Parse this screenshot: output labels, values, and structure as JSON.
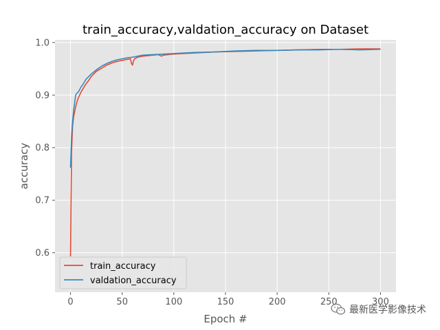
{
  "chart_data": {
    "type": "line",
    "title": "train_accuracy,valdation_accuracy on Dataset",
    "xlabel": "Epoch #",
    "ylabel": "accuracy",
    "xlim": [
      -15,
      315
    ],
    "ylim": [
      0.525,
      1.005
    ],
    "xticks": [
      0,
      50,
      100,
      150,
      200,
      250,
      300
    ],
    "yticks": [
      0.6,
      0.7,
      0.8,
      0.9,
      1.0
    ],
    "ytick_labels": [
      "0.6",
      "0.7",
      "0.8",
      "0.9",
      "1.0"
    ],
    "grid": true,
    "legend_position": "bottom-left",
    "series": [
      {
        "name": "train_accuracy",
        "color": "#E24A33",
        "points": [
          [
            0,
            0.593
          ],
          [
            1,
            0.79
          ],
          [
            2,
            0.84
          ],
          [
            3,
            0.858
          ],
          [
            5,
            0.878
          ],
          [
            7,
            0.892
          ],
          [
            10,
            0.905
          ],
          [
            13,
            0.915
          ],
          [
            15,
            0.921
          ],
          [
            18,
            0.929
          ],
          [
            20,
            0.935
          ],
          [
            25,
            0.945
          ],
          [
            30,
            0.951
          ],
          [
            35,
            0.957
          ],
          [
            40,
            0.961
          ],
          [
            45,
            0.964
          ],
          [
            50,
            0.966
          ],
          [
            55,
            0.968
          ],
          [
            58,
            0.969
          ],
          [
            59,
            0.96
          ],
          [
            60,
            0.957
          ],
          [
            61,
            0.965
          ],
          [
            62,
            0.969
          ],
          [
            65,
            0.972
          ],
          [
            70,
            0.974
          ],
          [
            80,
            0.976
          ],
          [
            85,
            0.977
          ],
          [
            88,
            0.974
          ],
          [
            90,
            0.976
          ],
          [
            100,
            0.978
          ],
          [
            110,
            0.979
          ],
          [
            120,
            0.98
          ],
          [
            140,
            0.982
          ],
          [
            160,
            0.983
          ],
          [
            180,
            0.984
          ],
          [
            200,
            0.985
          ],
          [
            220,
            0.986
          ],
          [
            240,
            0.987
          ],
          [
            260,
            0.987
          ],
          [
            280,
            0.988
          ],
          [
            300,
            0.988
          ]
        ]
      },
      {
        "name": "valdation_accuracy",
        "color": "#348ABD",
        "points": [
          [
            0,
            0.762
          ],
          [
            1,
            0.82
          ],
          [
            2,
            0.85
          ],
          [
            3,
            0.87
          ],
          [
            5,
            0.9
          ],
          [
            6,
            0.903
          ],
          [
            8,
            0.907
          ],
          [
            10,
            0.915
          ],
          [
            12,
            0.92
          ],
          [
            15,
            0.93
          ],
          [
            18,
            0.936
          ],
          [
            20,
            0.94
          ],
          [
            25,
            0.948
          ],
          [
            30,
            0.955
          ],
          [
            35,
            0.96
          ],
          [
            40,
            0.964
          ],
          [
            45,
            0.967
          ],
          [
            50,
            0.969
          ],
          [
            55,
            0.971
          ],
          [
            60,
            0.972
          ],
          [
            65,
            0.974
          ],
          [
            70,
            0.976
          ],
          [
            80,
            0.977
          ],
          [
            90,
            0.978
          ],
          [
            100,
            0.979
          ],
          [
            110,
            0.98
          ],
          [
            120,
            0.981
          ],
          [
            140,
            0.982
          ],
          [
            160,
            0.984
          ],
          [
            180,
            0.985
          ],
          [
            200,
            0.985
          ],
          [
            220,
            0.986
          ],
          [
            240,
            0.986
          ],
          [
            260,
            0.987
          ],
          [
            280,
            0.986
          ],
          [
            300,
            0.987
          ]
        ]
      }
    ]
  },
  "watermark": {
    "text": "最新医学影像技术",
    "icon": "wechat-icon"
  }
}
